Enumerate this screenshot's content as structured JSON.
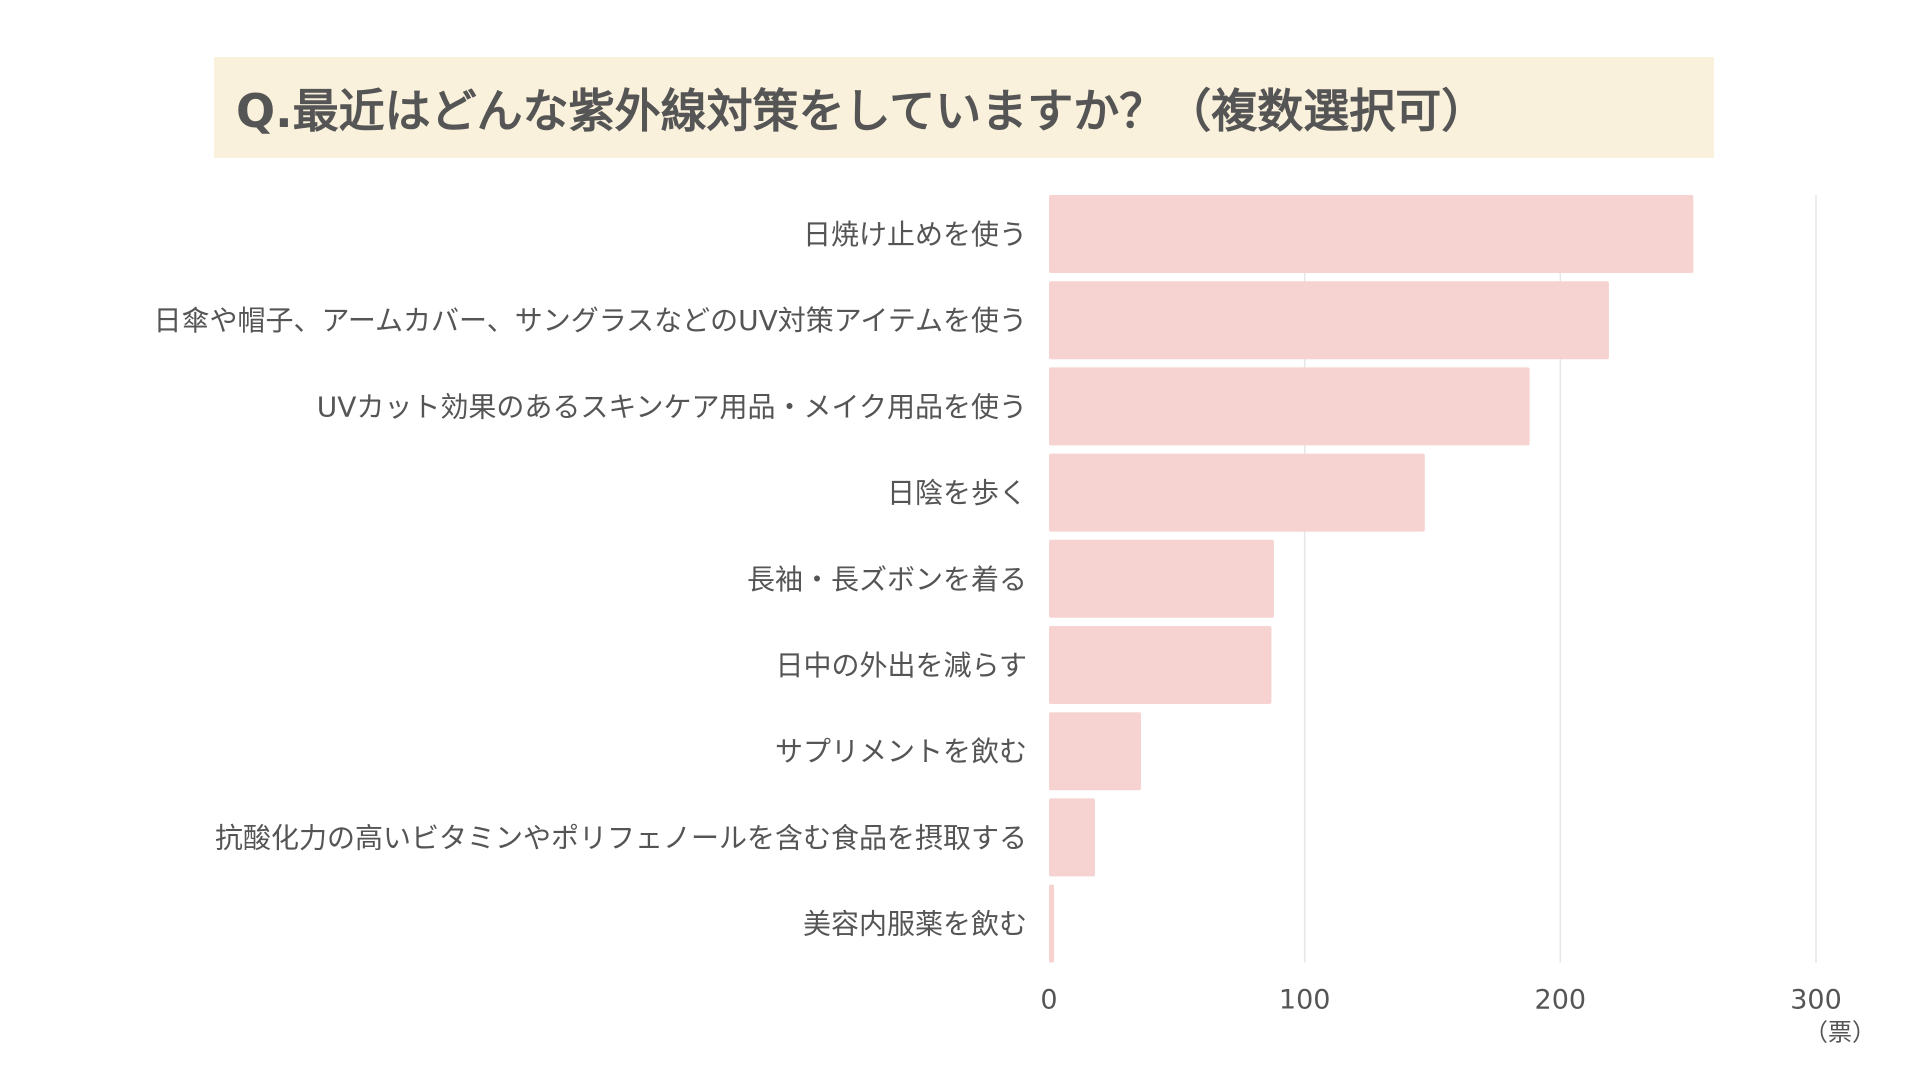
{
  "chart_data": {
    "type": "bar",
    "orientation": "horizontal",
    "title": "Q.最近はどんな紫外線対策をしていますか？（複数選択可）",
    "categories": [
      "日焼け止めを使う",
      "日傘や帽子、アームカバー、サングラスなどのUV対策アイテムを使う",
      "UVカット効果のあるスキンケア用品・メイク用品を使う",
      "日陰を歩く",
      "長袖・長ズボンを着る",
      "日中の外出を減らす",
      "サプリメントを飲む",
      "抗酸化力の高いビタミンやポリフェノールを含む食品を摂取する",
      "美容内服薬を飲む"
    ],
    "values": [
      252,
      219,
      188,
      147,
      88,
      87,
      36,
      18,
      2
    ],
    "xlim": [
      0,
      300
    ],
    "xticks": [
      "0",
      "100",
      "200",
      "300"
    ],
    "xtick_values": [
      0,
      100,
      200,
      300
    ],
    "unit": "（票）",
    "grid": true,
    "colors": {
      "bar": "#f6d3d1",
      "grid": "#e6e6e6",
      "title_bg": "#faf1dc",
      "text": "#555555"
    }
  }
}
